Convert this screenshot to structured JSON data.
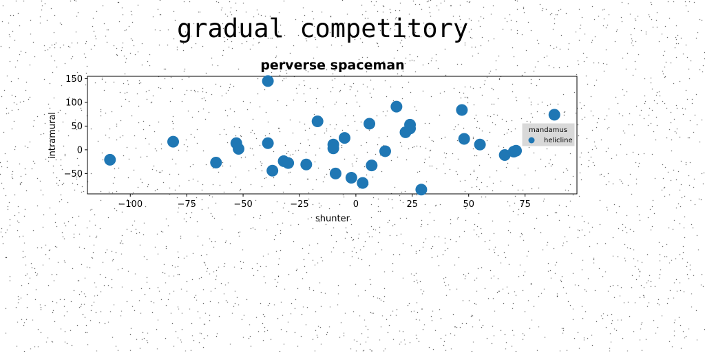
{
  "figure": {
    "suptitle": "gradual competitory"
  },
  "chart_data": {
    "type": "scatter",
    "title": "perverse spaceman",
    "xlabel": "shunter",
    "ylabel": "intramural",
    "xlim": [
      -119,
      98
    ],
    "ylim": [
      -93,
      155
    ],
    "xticks": [
      -100,
      -75,
      -50,
      -25,
      0,
      25,
      50,
      75
    ],
    "xtick_labels": [
      "−100",
      "−75",
      "−50",
      "−25",
      "0",
      "25",
      "50",
      "75"
    ],
    "yticks": [
      -50,
      0,
      50,
      100,
      150
    ],
    "ytick_labels": [
      "−50",
      "0",
      "50",
      "100",
      "150"
    ],
    "grid": false,
    "legend": {
      "title": "mandamus",
      "placement": "right",
      "entries": [
        "helicline"
      ]
    },
    "series": [
      {
        "name": "helicline",
        "color": "#1f77b4",
        "points": [
          {
            "x": -109,
            "y": -21
          },
          {
            "x": -81,
            "y": 17
          },
          {
            "x": -62,
            "y": -27
          },
          {
            "x": -53,
            "y": 14
          },
          {
            "x": -52,
            "y": 2
          },
          {
            "x": -39,
            "y": 145
          },
          {
            "x": -39,
            "y": 14
          },
          {
            "x": -37,
            "y": -44
          },
          {
            "x": -32,
            "y": -24
          },
          {
            "x": -30,
            "y": -28
          },
          {
            "x": -22,
            "y": -31
          },
          {
            "x": -17,
            "y": 60
          },
          {
            "x": -10,
            "y": 11
          },
          {
            "x": -10,
            "y": 3
          },
          {
            "x": -9,
            "y": -50
          },
          {
            "x": -5,
            "y": 25
          },
          {
            "x": -2,
            "y": -59
          },
          {
            "x": 3,
            "y": -70
          },
          {
            "x": 6,
            "y": 55
          },
          {
            "x": 7,
            "y": -33
          },
          {
            "x": 13,
            "y": -3
          },
          {
            "x": 18,
            "y": 91
          },
          {
            "x": 22,
            "y": 37
          },
          {
            "x": 24,
            "y": 53
          },
          {
            "x": 24,
            "y": 45
          },
          {
            "x": 29,
            "y": -84
          },
          {
            "x": 47,
            "y": 84
          },
          {
            "x": 48,
            "y": 23
          },
          {
            "x": 55,
            "y": 11
          },
          {
            "x": 66,
            "y": -11
          },
          {
            "x": 70,
            "y": -4
          },
          {
            "x": 71,
            "y": -2
          },
          {
            "x": 88,
            "y": 74
          }
        ]
      }
    ]
  }
}
